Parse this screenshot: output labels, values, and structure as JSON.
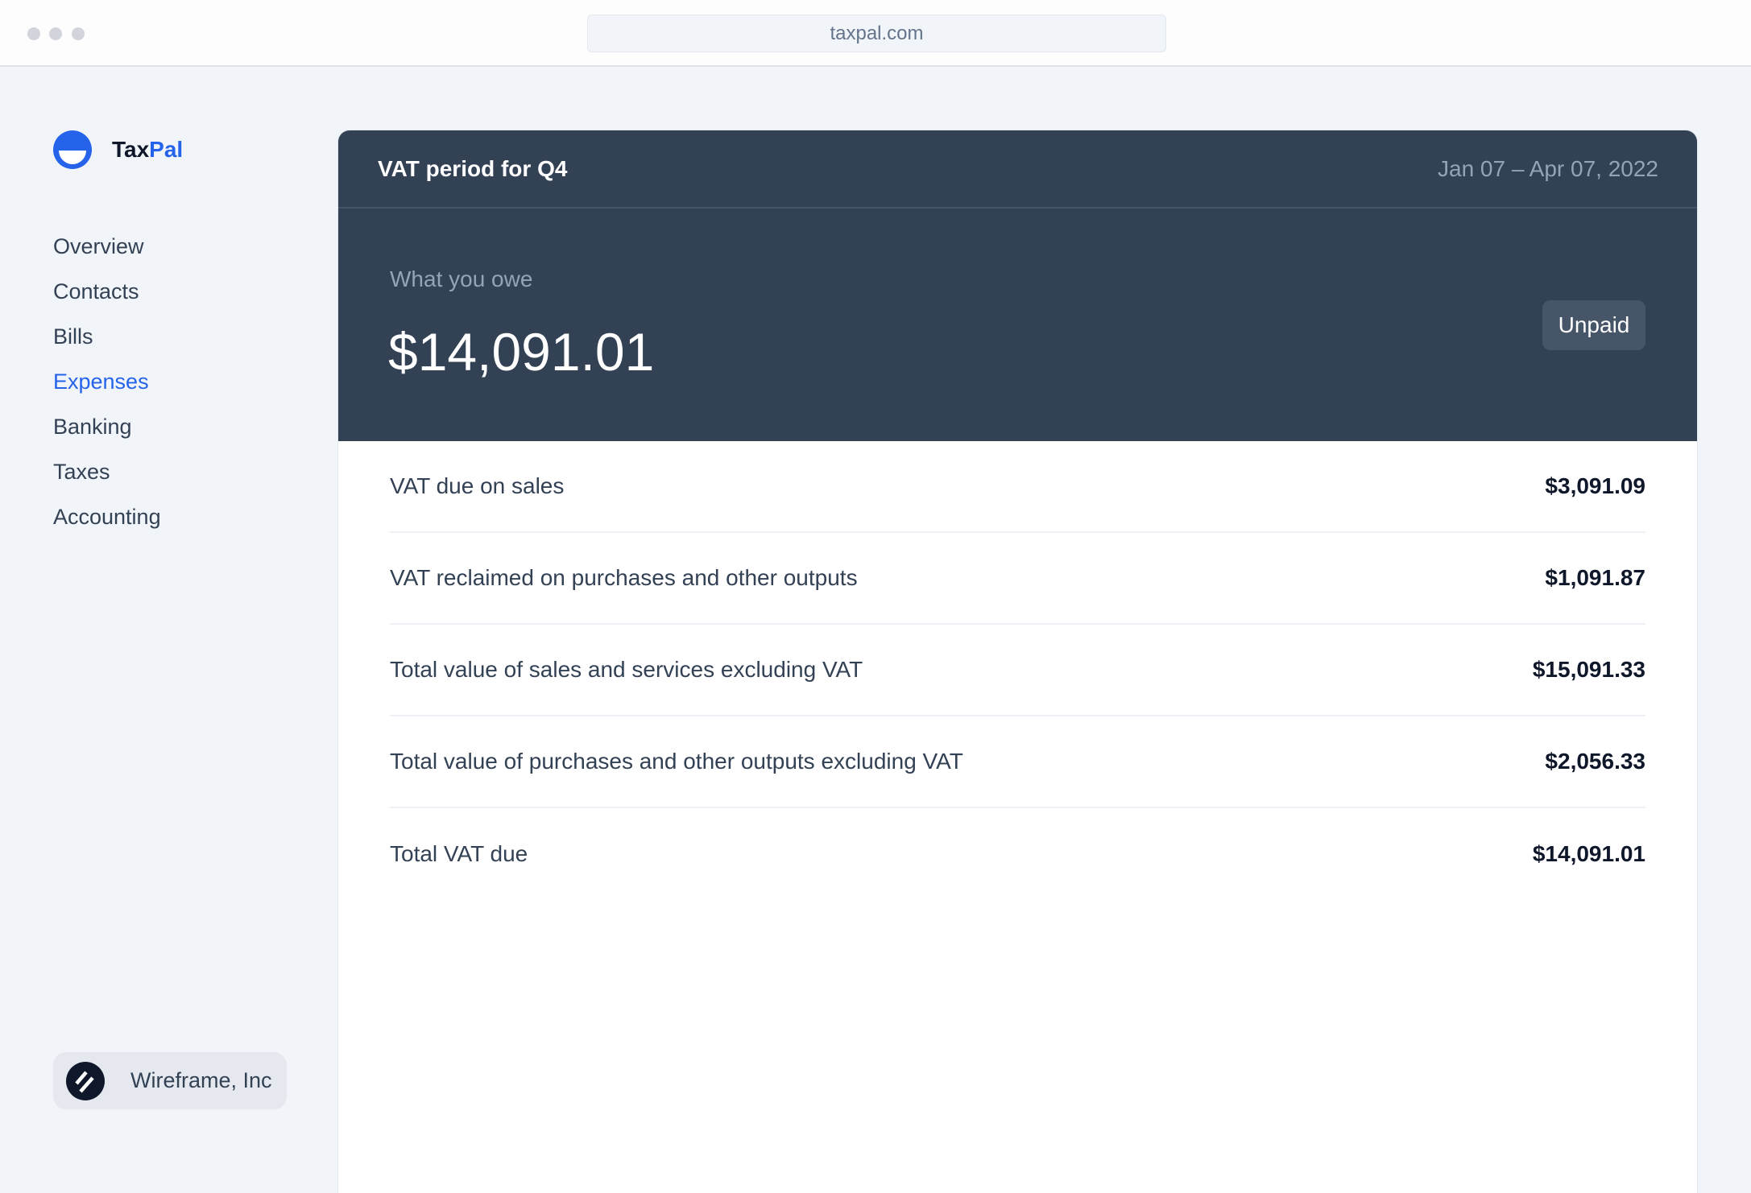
{
  "browser": {
    "url": "taxpal.com"
  },
  "brand": {
    "name_part1": "Tax",
    "name_part2": "Pal",
    "accent": "#2563eb"
  },
  "sidebar": {
    "items": [
      {
        "label": "Overview",
        "active": false
      },
      {
        "label": "Contacts",
        "active": false
      },
      {
        "label": "Bills",
        "active": false
      },
      {
        "label": "Expenses",
        "active": true
      },
      {
        "label": "Banking",
        "active": false
      },
      {
        "label": "Taxes",
        "active": false
      },
      {
        "label": "Accounting",
        "active": false
      }
    ],
    "company": "Wireframe, Inc"
  },
  "card": {
    "title": "VAT period for Q4",
    "date_range": "Jan 07 – Apr 07, 2022",
    "owe_label": "What you owe",
    "owe_amount": "$14,091.01",
    "status": "Unpaid",
    "rows": [
      {
        "label": "VAT due on sales",
        "value": "$3,091.09"
      },
      {
        "label": "VAT reclaimed on purchases and other outputs",
        "value": "$1,091.87"
      },
      {
        "label": "Total value of sales and services excluding VAT",
        "value": "$15,091.33"
      },
      {
        "label": "Total value of purchases and other outputs excluding VAT",
        "value": "$2,056.33"
      },
      {
        "label": "Total VAT due",
        "value": "$14,091.01"
      }
    ]
  }
}
